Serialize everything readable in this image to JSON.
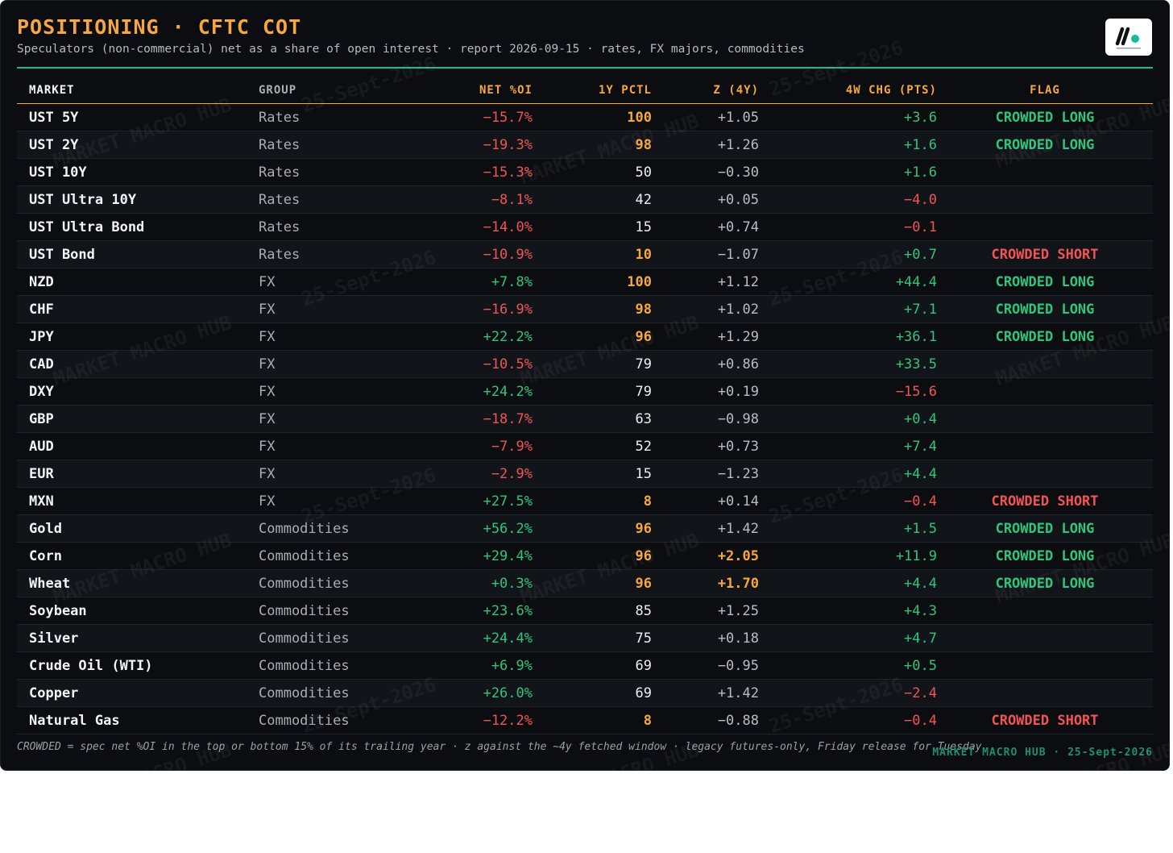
{
  "header": {
    "title": "POSITIONING · CFTC COT",
    "subtitle": "Speculators (non-commercial) net as a share of open interest · report 2026-09-15 · rates, FX majors, commodities"
  },
  "columns": {
    "market": "MARKET",
    "group": "GROUP",
    "net": "NET %OI",
    "pctl": "1Y PCTL",
    "z": "Z (4Y)",
    "chg": "4W CHG (PTS)",
    "flag": "FLAG"
  },
  "rows": [
    {
      "market": "UST 5Y",
      "group": "Rates",
      "net": "−15.7%",
      "pctl": "100",
      "z": "+1.05",
      "chg": "+3.6",
      "flag": "CROWDED LONG"
    },
    {
      "market": "UST 2Y",
      "group": "Rates",
      "net": "−19.3%",
      "pctl": "98",
      "z": "+1.26",
      "chg": "+1.6",
      "flag": "CROWDED LONG"
    },
    {
      "market": "UST 10Y",
      "group": "Rates",
      "net": "−15.3%",
      "pctl": "50",
      "z": "−0.30",
      "chg": "+1.6",
      "flag": ""
    },
    {
      "market": "UST Ultra 10Y",
      "group": "Rates",
      "net": "−8.1%",
      "pctl": "42",
      "z": "+0.05",
      "chg": "−4.0",
      "flag": ""
    },
    {
      "market": "UST Ultra Bond",
      "group": "Rates",
      "net": "−14.0%",
      "pctl": "15",
      "z": "+0.74",
      "chg": "−0.1",
      "flag": ""
    },
    {
      "market": "UST Bond",
      "group": "Rates",
      "net": "−10.9%",
      "pctl": "10",
      "z": "−1.07",
      "chg": "+0.7",
      "flag": "CROWDED SHORT"
    },
    {
      "market": "NZD",
      "group": "FX",
      "net": "+7.8%",
      "pctl": "100",
      "z": "+1.12",
      "chg": "+44.4",
      "flag": "CROWDED LONG"
    },
    {
      "market": "CHF",
      "group": "FX",
      "net": "−16.9%",
      "pctl": "98",
      "z": "+1.02",
      "chg": "+7.1",
      "flag": "CROWDED LONG"
    },
    {
      "market": "JPY",
      "group": "FX",
      "net": "+22.2%",
      "pctl": "96",
      "z": "+1.29",
      "chg": "+36.1",
      "flag": "CROWDED LONG"
    },
    {
      "market": "CAD",
      "group": "FX",
      "net": "−10.5%",
      "pctl": "79",
      "z": "+0.86",
      "chg": "+33.5",
      "flag": ""
    },
    {
      "market": "DXY",
      "group": "FX",
      "net": "+24.2%",
      "pctl": "79",
      "z": "+0.19",
      "chg": "−15.6",
      "flag": ""
    },
    {
      "market": "GBP",
      "group": "FX",
      "net": "−18.7%",
      "pctl": "63",
      "z": "−0.98",
      "chg": "+0.4",
      "flag": ""
    },
    {
      "market": "AUD",
      "group": "FX",
      "net": "−7.9%",
      "pctl": "52",
      "z": "+0.73",
      "chg": "+7.4",
      "flag": ""
    },
    {
      "market": "EUR",
      "group": "FX",
      "net": "−2.9%",
      "pctl": "15",
      "z": "−1.23",
      "chg": "+4.4",
      "flag": ""
    },
    {
      "market": "MXN",
      "group": "FX",
      "net": "+27.5%",
      "pctl": "8",
      "z": "+0.14",
      "chg": "−0.4",
      "flag": "CROWDED SHORT"
    },
    {
      "market": "Gold",
      "group": "Commodities",
      "net": "+56.2%",
      "pctl": "96",
      "z": "+1.42",
      "chg": "+1.5",
      "flag": "CROWDED LONG"
    },
    {
      "market": "Corn",
      "group": "Commodities",
      "net": "+29.4%",
      "pctl": "96",
      "z": "+2.05",
      "chg": "+11.9",
      "flag": "CROWDED LONG"
    },
    {
      "market": "Wheat",
      "group": "Commodities",
      "net": "+0.3%",
      "pctl": "96",
      "z": "+1.70",
      "chg": "+4.4",
      "flag": "CROWDED LONG"
    },
    {
      "market": "Soybean",
      "group": "Commodities",
      "net": "+23.6%",
      "pctl": "85",
      "z": "+1.25",
      "chg": "+4.3",
      "flag": ""
    },
    {
      "market": "Silver",
      "group": "Commodities",
      "net": "+24.4%",
      "pctl": "75",
      "z": "+0.18",
      "chg": "+4.7",
      "flag": ""
    },
    {
      "market": "Crude Oil (WTI)",
      "group": "Commodities",
      "net": "+6.9%",
      "pctl": "69",
      "z": "−0.95",
      "chg": "+0.5",
      "flag": ""
    },
    {
      "market": "Copper",
      "group": "Commodities",
      "net": "+26.0%",
      "pctl": "69",
      "z": "+1.42",
      "chg": "−2.4",
      "flag": ""
    },
    {
      "market": "Natural Gas",
      "group": "Commodities",
      "net": "−12.2%",
      "pctl": "8",
      "z": "−0.88",
      "chg": "−0.4",
      "flag": "CROWDED SHORT"
    }
  ],
  "footer": {
    "note": "CROWDED = spec net %OI in the top or bottom 15% of its trailing year · z against the ~4y fetched window · legacy futures-only, Friday release for Tuesday",
    "brand": "MARKET MACRO HUB · 25-Sept-2026"
  },
  "watermark": {
    "brand": "MARKET MACRO HUB",
    "date": "25-Sept-2026"
  },
  "colors": {
    "accent": "#f5a742",
    "rule": "#19b99a",
    "positive": "#30c57c",
    "negative": "#f05454",
    "background": "#0b0d11"
  }
}
